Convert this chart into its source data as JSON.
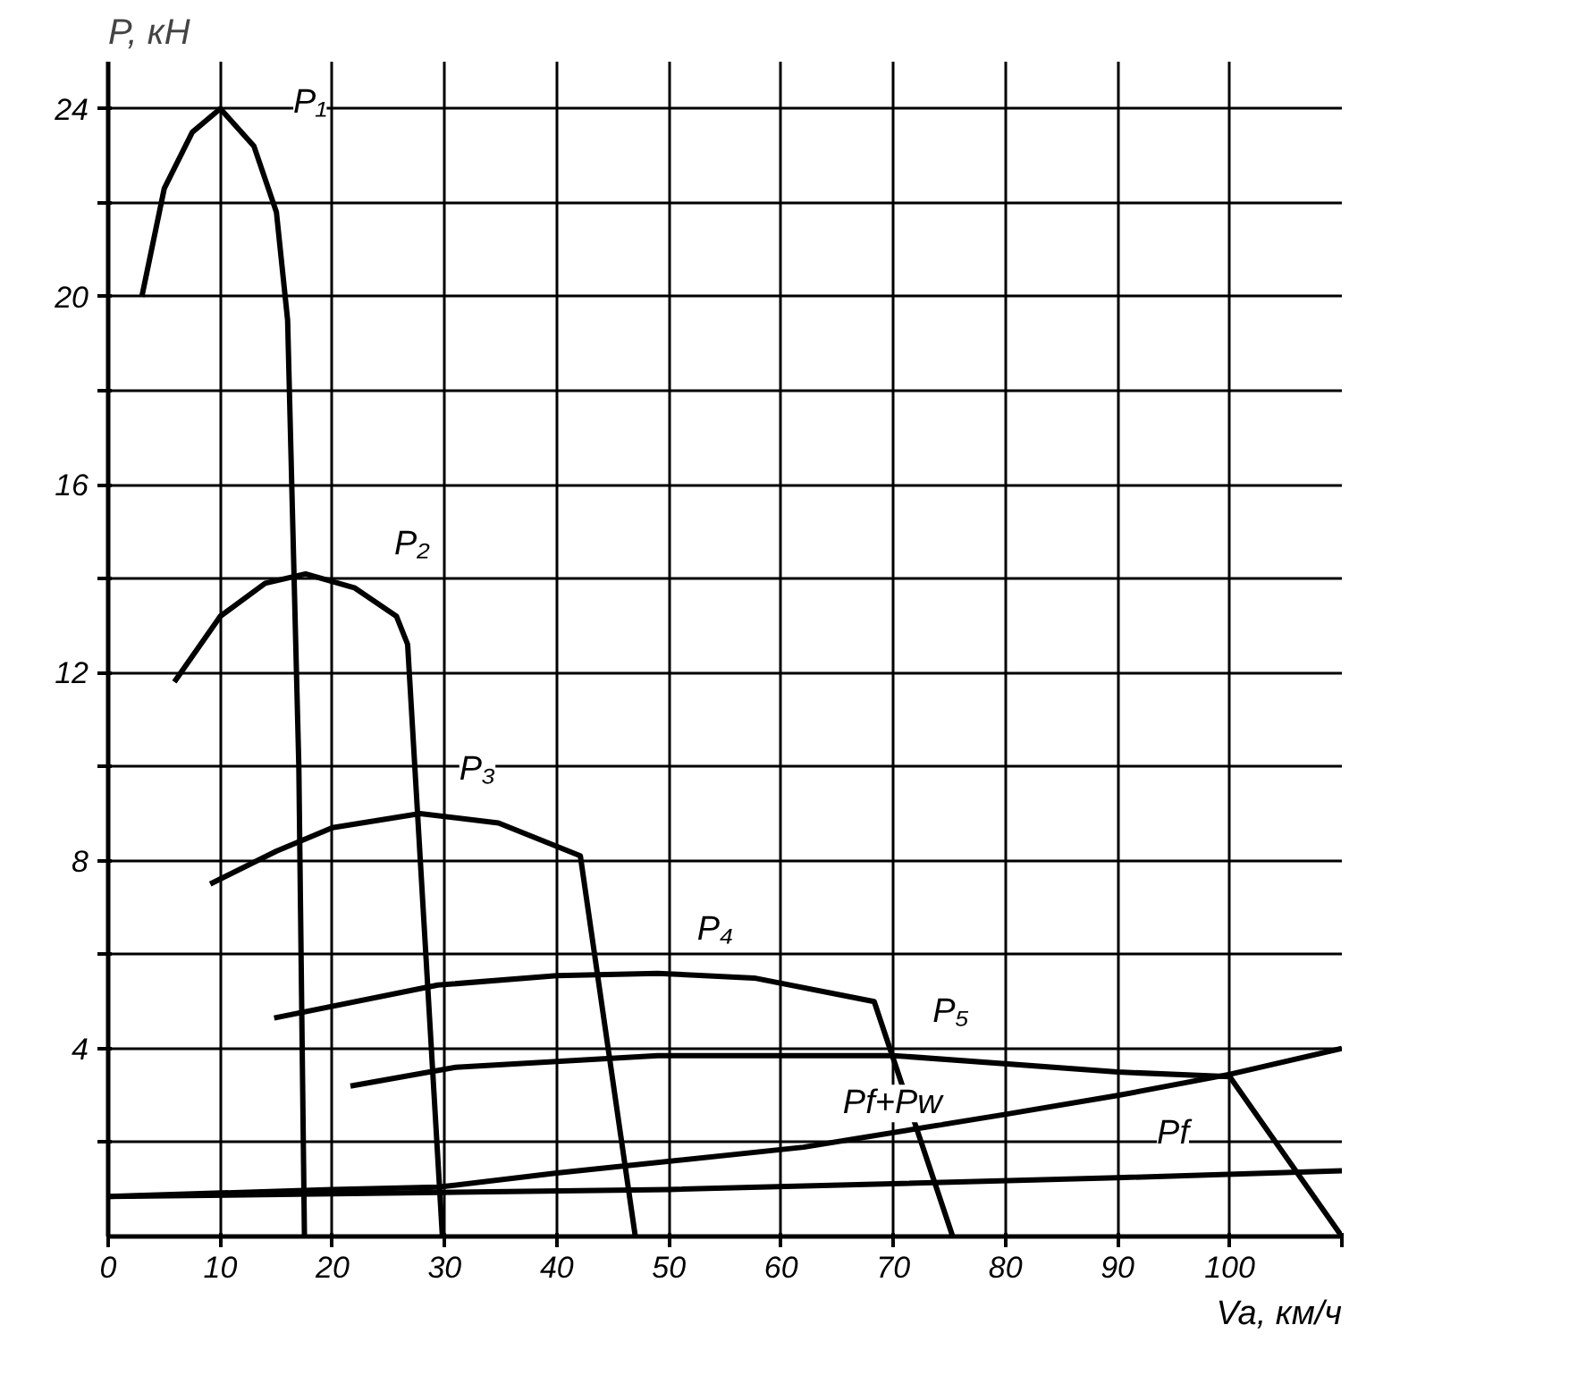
{
  "chart_data": {
    "type": "line",
    "xlabel": "Va, км/ч",
    "ylabel": "P, кН",
    "xlim": [
      0,
      110
    ],
    "ylim": [
      0,
      25
    ],
    "xticks": [
      0,
      10,
      20,
      30,
      40,
      50,
      60,
      70,
      80,
      90,
      100,
      {
        "value": 110,
        "label": null
      }
    ],
    "yticks": [
      {
        "value": 2,
        "label": null
      },
      4,
      {
        "value": 6,
        "label": null
      },
      8,
      {
        "value": 10,
        "label": null
      },
      12,
      {
        "value": 14,
        "label": null
      },
      16,
      {
        "value": 18,
        "label": null
      },
      20,
      {
        "value": 22,
        "label": null
      },
      24
    ],
    "grid": true,
    "marker": "none",
    "line_style": "solid",
    "series": [
      {
        "name": "P₁",
        "color": "#000000",
        "x": [
          3,
          5,
          7.5,
          10,
          13,
          15,
          16,
          17,
          17.5
        ],
        "values": [
          20,
          22.3,
          23.5,
          24,
          23.2,
          21.8,
          19.5,
          10,
          0
        ]
      },
      {
        "name": "P₂",
        "color": "#000000",
        "x": [
          5.9,
          10,
          14,
          17.6,
          22,
          25.7,
          26.7,
          29.8
        ],
        "values": [
          11.8,
          13.2,
          13.9,
          14.1,
          13.8,
          13.2,
          12.6,
          0
        ]
      },
      {
        "name": "P₃",
        "color": "#000000",
        "x": [
          9.1,
          15,
          20,
          27.8,
          34.8,
          42.1,
          47
        ],
        "values": [
          7.5,
          8.2,
          8.7,
          9.0,
          8.8,
          8.1,
          0
        ]
      },
      {
        "name": "P₄",
        "color": "#000000",
        "x": [
          14.8,
          29.4,
          40,
          49,
          57.6,
          68.3,
          75.3
        ],
        "values": [
          4.65,
          5.35,
          5.55,
          5.6,
          5.5,
          5.0,
          0
        ]
      },
      {
        "name": "P₅",
        "color": "#000000",
        "x": [
          21.6,
          31,
          49,
          70,
          90,
          100,
          110
        ],
        "values": [
          3.2,
          3.6,
          3.85,
          3.85,
          3.5,
          3.4,
          0
        ]
      },
      {
        "name": "Pf",
        "color": "#000000",
        "x": [
          0,
          50,
          90,
          110
        ],
        "values": [
          0.85,
          1.0,
          1.25,
          1.4
        ]
      },
      {
        "name": "Pf+Pw",
        "color": "#000000",
        "x": [
          0,
          20,
          29.4,
          40,
          62,
          80,
          90,
          100,
          110
        ],
        "values": [
          0.85,
          1.0,
          1.05,
          1.35,
          1.9,
          2.6,
          3.0,
          3.45,
          4.0
        ]
      }
    ]
  }
}
